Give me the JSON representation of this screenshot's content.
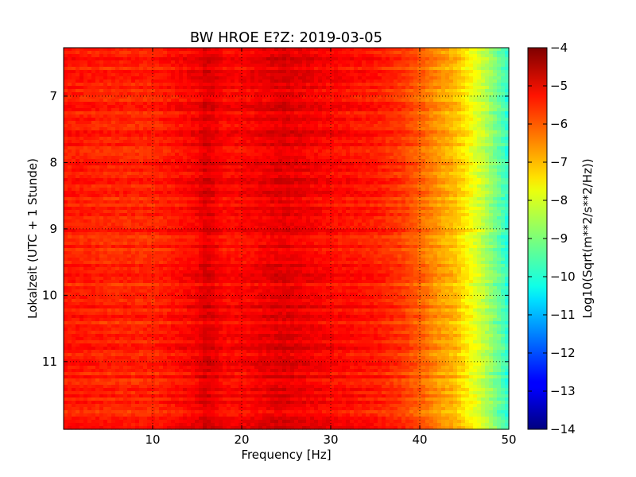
{
  "chart_data": {
    "type": "heatmap",
    "title": "BW HROE E?Z: 2019-03-05",
    "xlabel": "Frequency [Hz]",
    "ylabel": "Lokalzeit (UTC + 1 Stunde)",
    "xlim": [
      0,
      50
    ],
    "ylim": [
      6.27,
      12.02
    ],
    "x_ticks": [
      10,
      20,
      30,
      40,
      50
    ],
    "y_ticks": [
      7,
      8,
      9,
      10,
      11
    ],
    "y_inverted": true,
    "grid": true,
    "colormap": "jet",
    "colorbar": {
      "label": "Log10(Sqrt(m**2/s**2/Hz))",
      "min": -14,
      "max": -4,
      "ticks": [
        -4,
        -5,
        -6,
        -7,
        -8,
        -9,
        -10,
        -11,
        -12,
        -13,
        -14
      ]
    },
    "spectral_profile": {
      "frequency_hz": [
        0,
        2,
        5,
        10,
        15,
        16,
        18,
        20,
        24,
        25,
        30,
        35,
        38,
        40,
        42,
        44,
        45,
        46,
        47,
        48,
        49,
        50
      ],
      "log10_amplitude": [
        -5.5,
        -5.5,
        -5.6,
        -5.6,
        -5.2,
        -4.9,
        -5.3,
        -5.3,
        -5.0,
        -5.0,
        -5.3,
        -5.5,
        -5.8,
        -6.2,
        -6.7,
        -7.1,
        -7.5,
        -7.9,
        -8.3,
        -8.8,
        -9.3,
        -9.9
      ]
    },
    "noise_amplitude": 0.35
  }
}
